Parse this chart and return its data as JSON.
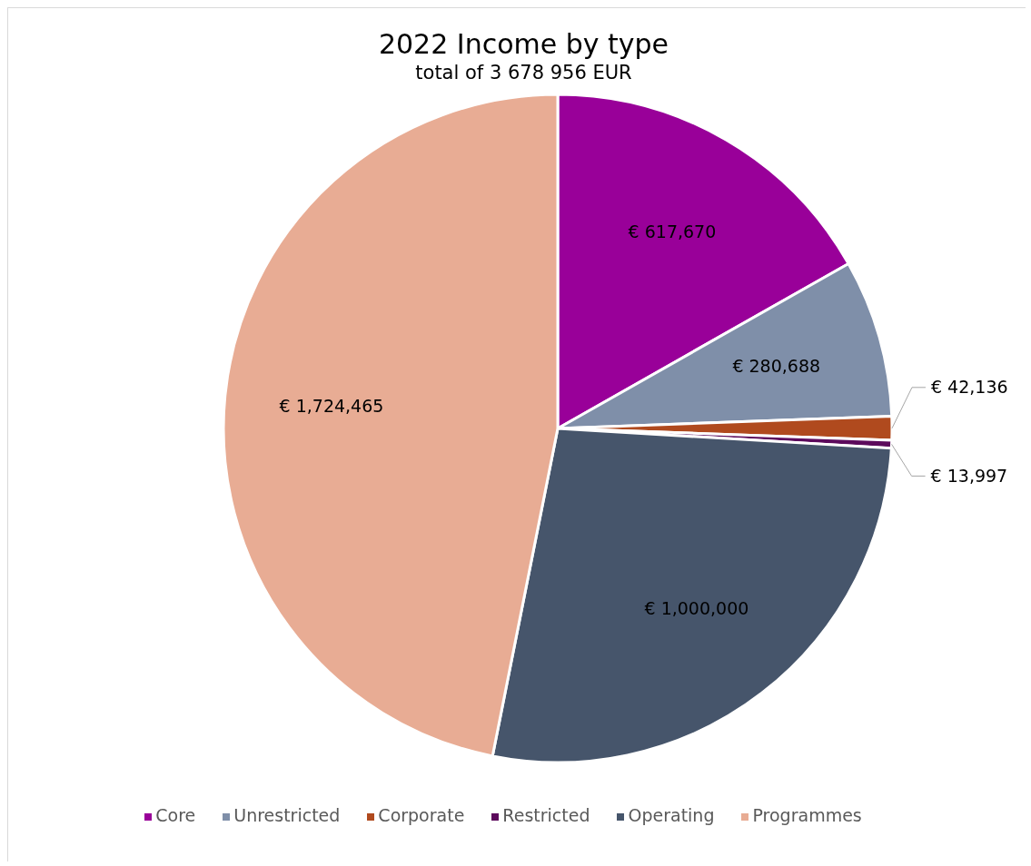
{
  "chart_data": {
    "type": "pie",
    "title": "2022 Income by type",
    "subtitle": "total of 3 678 956 EUR",
    "categories": [
      "Core",
      "Unrestricted",
      "Corporate",
      "Restricted",
      "Operating",
      "Programmes"
    ],
    "values": [
      617670,
      280688,
      42136,
      13997,
      1000000,
      1724465
    ],
    "colors": [
      "#990099",
      "#7f8fa9",
      "#b04a1e",
      "#5c0a5c",
      "#46556b",
      "#e8ac94"
    ],
    "value_labels": [
      "€ 617,670",
      "€ 280,688",
      "€ 42,136",
      "€ 13,997",
      "€ 1,000,000",
      "€ 1,724,465"
    ],
    "legend": "bottom"
  }
}
